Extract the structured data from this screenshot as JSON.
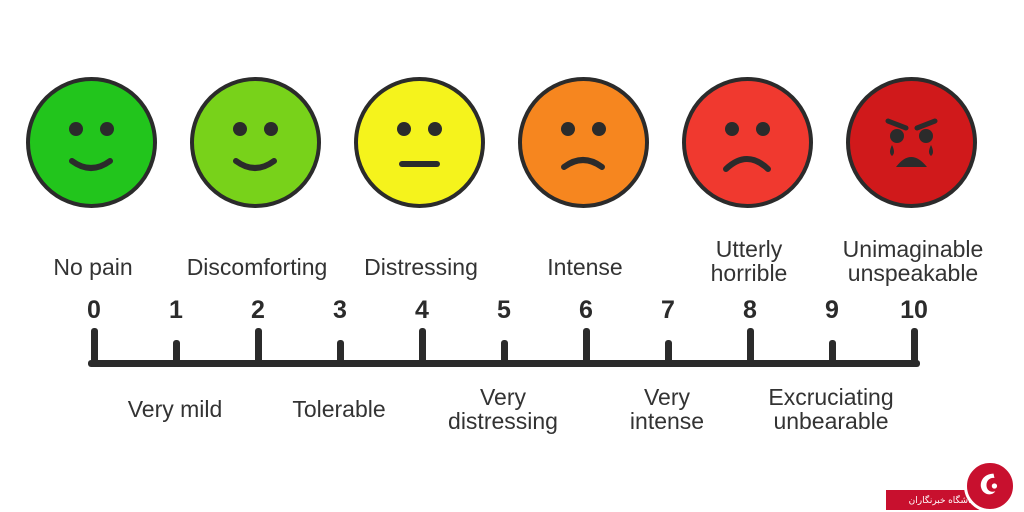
{
  "scale": {
    "numbers": [
      "0",
      "1",
      "2",
      "3",
      "4",
      "5",
      "6",
      "7",
      "8",
      "9",
      "10"
    ]
  },
  "top_labels": [
    {
      "text": "No pain"
    },
    {
      "text": "Discomforting"
    },
    {
      "text": "Distressing"
    },
    {
      "text": "Intense"
    },
    {
      "text": "Utterly\nhorrible"
    },
    {
      "text": "Unimaginable\nunspeakable"
    }
  ],
  "bottom_labels": [
    {
      "text": "Very mild"
    },
    {
      "text": "Tolerable"
    },
    {
      "text": "Very\ndistressing"
    },
    {
      "text": "Very\nintense"
    },
    {
      "text": "Excruciating\nunbearable"
    }
  ],
  "faces": [
    {
      "name": "smiling-face-icon",
      "color": "#22c51c",
      "mood": "smile"
    },
    {
      "name": "smiling-face-icon",
      "color": "#78d21a",
      "mood": "smile"
    },
    {
      "name": "neutral-face-icon",
      "color": "#f5f31c",
      "mood": "neutral"
    },
    {
      "name": "frowning-face-icon",
      "color": "#f6861f",
      "mood": "frown"
    },
    {
      "name": "sad-face-icon",
      "color": "#f0392f",
      "mood": "sad"
    },
    {
      "name": "crying-face-icon",
      "color": "#d0191b",
      "mood": "cry"
    }
  ],
  "watermark": {
    "text": "باشگاه خبرنگاران",
    "color": "#c8102e"
  }
}
